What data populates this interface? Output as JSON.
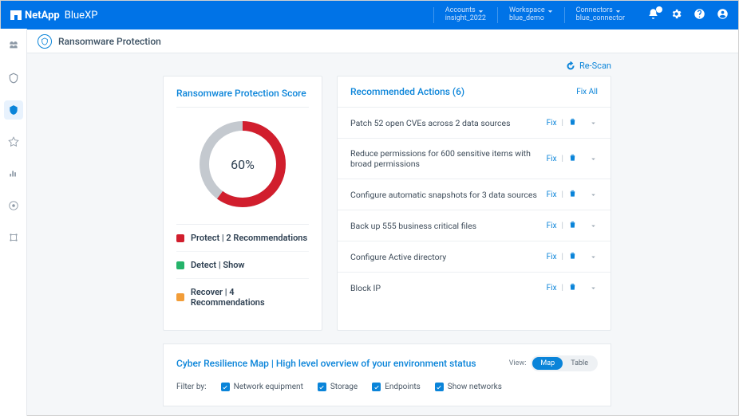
{
  "brand": {
    "company": "NetApp",
    "product": "BlueXP"
  },
  "context": {
    "accounts": {
      "label": "Accounts",
      "value": "insight_2022"
    },
    "workspace": {
      "label": "Workspace",
      "value": "blue_demo"
    },
    "connectors": {
      "label": "Connectors",
      "value": "blue_connector"
    }
  },
  "notification_count": 1,
  "subheader": {
    "title": "Ransomware Protection"
  },
  "rescan_label": "Re-Scan",
  "score_card": {
    "title": "Ransomware Protection Score",
    "donut": {
      "percent": 60,
      "label": "60%",
      "ring_color": "#d11e2d",
      "track_color": "#c4c9cf",
      "bg_color": "#ffffff",
      "stroke_width": 12,
      "radius": 48
    },
    "legend": [
      {
        "color": "#d11e2d",
        "text": "Protect | 2 Recommendations"
      },
      {
        "color": "#25b36a",
        "text": "Detect | Show"
      },
      {
        "color": "#f29d38",
        "text": "Recover | 4 Recommendations"
      }
    ]
  },
  "recommendations": {
    "title": "Recommended Actions (6)",
    "fix_all": "Fix All",
    "fix_label": "Fix",
    "items": [
      {
        "text": "Patch 52 open CVEs across 2 data sources"
      },
      {
        "text": "Reduce permissions for 600 sensitive items with broad permissions"
      },
      {
        "text": "Configure automatic snapshots for 3 data sources"
      },
      {
        "text": "Back up 555 business critical files"
      },
      {
        "text": "Configure Active directory"
      },
      {
        "text": "Block IP"
      }
    ]
  },
  "map": {
    "title": "Cyber Resilience Map | High level overview of your environment status",
    "view_label": "View:",
    "view_options": {
      "map": "Map",
      "table": "Table"
    },
    "filter_label": "Filter by:",
    "filters": [
      {
        "label": "Network equipment",
        "checked": true
      },
      {
        "label": "Storage",
        "checked": true
      },
      {
        "label": "Endpoints",
        "checked": true
      },
      {
        "label": "Show networks",
        "checked": true
      }
    ]
  },
  "colors": {
    "brand_blue": "#0073e7",
    "link_blue": "#0a84d9",
    "text_dark": "#2c3e50",
    "border": "#e5e9ed"
  }
}
